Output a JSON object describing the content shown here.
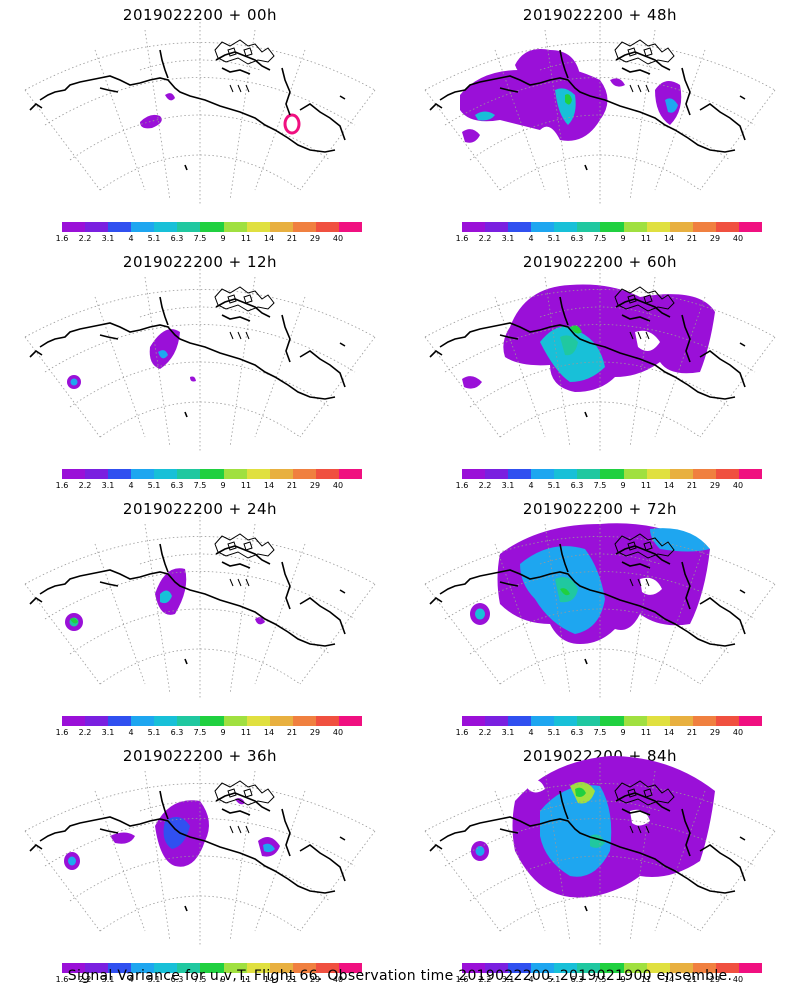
{
  "panels": [
    {
      "title": "2019022200 + 00h"
    },
    {
      "title": "2019022200 + 48h"
    },
    {
      "title": "2019022200 + 12h"
    },
    {
      "title": "2019022200 + 60h"
    },
    {
      "title": "2019022200 + 24h"
    },
    {
      "title": "2019022200 + 72h"
    },
    {
      "title": "2019022200 + 36h"
    },
    {
      "title": "2019022200 + 84h"
    }
  ],
  "colorbar": {
    "labels": [
      "1.6",
      "2.2",
      "3.1",
      "4",
      "5.1",
      "6.3",
      "7.5",
      "9",
      "11",
      "14",
      "21",
      "29",
      "40"
    ],
    "colors": [
      "#9a10d8",
      "#7a20e0",
      "#3050f0",
      "#1ea6f0",
      "#18c0d8",
      "#20c8a0",
      "#20d040",
      "#a0e040",
      "#e0e040",
      "#e8b040",
      "#f08040",
      "#f05040",
      "#f01080"
    ]
  },
  "caption": "Signal Variance for u,v,T. Flight 66. Observation time 2019022200. 2019021900 ensemble."
}
